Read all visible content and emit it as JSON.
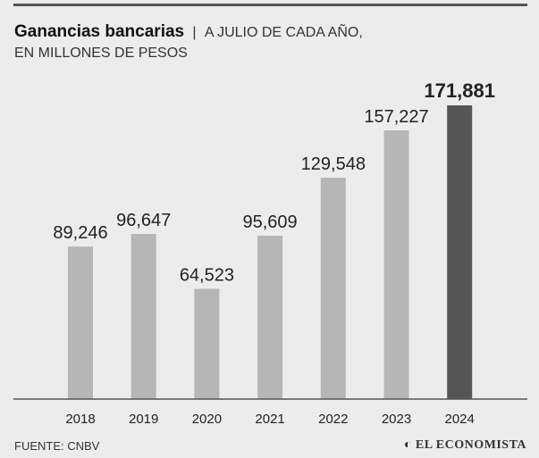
{
  "header": {
    "title": "Ganancias bancarias",
    "separator": "|",
    "subtitle_line1": "A JULIO DE CADA AÑO,",
    "subtitle_line2": "EN MILLONES DE PESOS"
  },
  "footer": {
    "source": "FUENTE: CNBV",
    "logo": "EL ECONOMISTA"
  },
  "colors": {
    "background": "#ececec",
    "bar": "#b6b6b6",
    "highlight_bar": "#555555",
    "axis": "#555555"
  },
  "chart_data": {
    "type": "bar",
    "title": "Ganancias bancarias",
    "categories": [
      "2018",
      "2019",
      "2020",
      "2021",
      "2022",
      "2023",
      "2024"
    ],
    "values": [
      89246,
      96647,
      64523,
      95609,
      129548,
      157227,
      171881
    ],
    "labels": [
      "89,246",
      "96,647",
      "64,523",
      "95,609",
      "129,548",
      "157,227",
      "171,881"
    ],
    "highlight": "2024",
    "xlabel": "",
    "ylabel": "En millones de pesos",
    "ylim": [
      0,
      171881
    ],
    "grid": false
  }
}
